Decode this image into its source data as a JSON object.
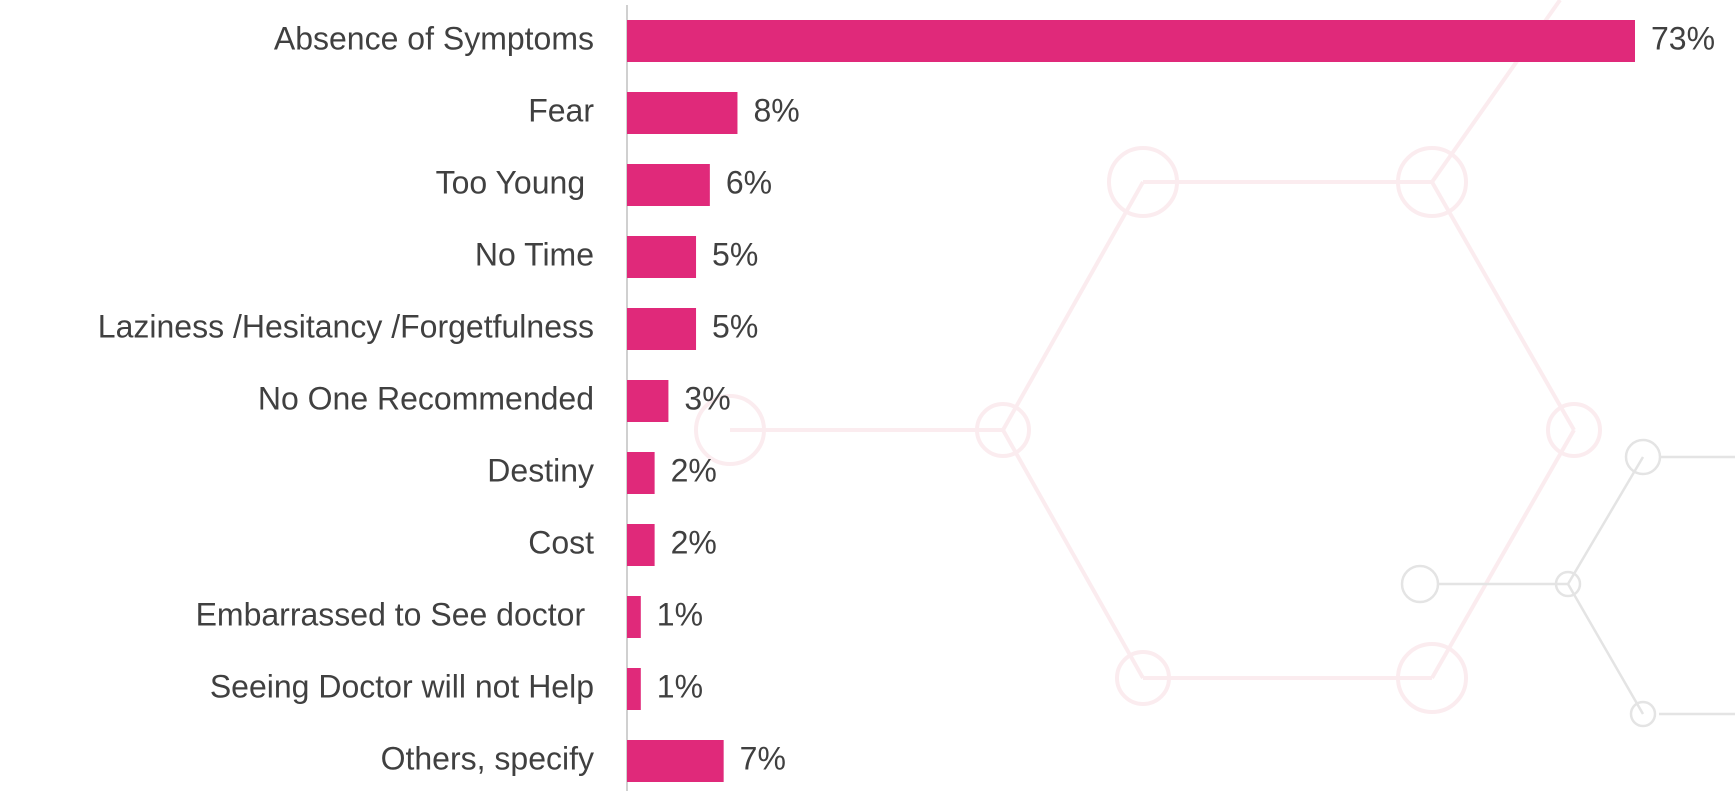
{
  "chart_data": {
    "type": "bar",
    "orientation": "horizontal",
    "categories": [
      "Absence of Symptoms",
      "Fear",
      "Too Young ",
      "No Time",
      "Laziness /Hesitancy /Forgetfulness",
      "No One Recommended",
      "Destiny",
      "Cost",
      "Embarrassed to See doctor ",
      "Seeing Doctor will not Help",
      "Others, specify"
    ],
    "values": [
      73,
      8,
      6,
      5,
      5,
      3,
      2,
      2,
      1,
      1,
      7
    ],
    "value_labels": [
      "73%",
      "8%",
      "6%",
      "5%",
      "5%",
      "3%",
      "2%",
      "2%",
      "1%",
      "1%",
      "7%"
    ],
    "color": "#e0297a"
  }
}
